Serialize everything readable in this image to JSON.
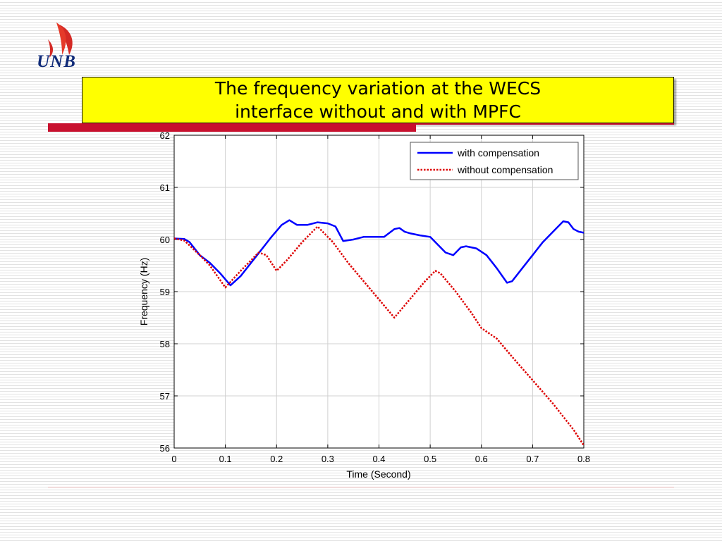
{
  "logo": {
    "text": "UNB"
  },
  "title": {
    "line1": "The frequency variation at the WECS",
    "line2": "interface without and with MPFC"
  },
  "colors": {
    "title_background": "#ffff00",
    "accent_red": "#c8102e",
    "series_with": "#0000ff",
    "series_without": "#dd0000"
  },
  "chart_data": {
    "type": "line",
    "title": "",
    "xlabel": "Time (Second)",
    "ylabel": "Frequency (Hz)",
    "xlim": [
      0,
      0.8
    ],
    "ylim": [
      56,
      62
    ],
    "x_ticks": [
      0,
      0.1,
      0.2,
      0.3,
      0.4,
      0.5,
      0.6,
      0.7,
      0.8
    ],
    "x_tick_labels": [
      "0",
      "0.1",
      "0.2",
      "0.3",
      "0.4",
      "0.5",
      "0.6",
      "0.7",
      "0.8"
    ],
    "y_ticks": [
      56,
      57,
      58,
      59,
      60,
      61,
      62
    ],
    "y_tick_labels": [
      "56",
      "57",
      "58",
      "59",
      "60",
      "61",
      "62"
    ],
    "grid": true,
    "legend_position": "top-right",
    "series": [
      {
        "name": "with compensation",
        "style": "solid",
        "color": "#0000ff",
        "x": [
          0,
          0.02,
          0.03,
          0.05,
          0.07,
          0.09,
          0.11,
          0.13,
          0.15,
          0.17,
          0.19,
          0.21,
          0.225,
          0.24,
          0.26,
          0.28,
          0.3,
          0.315,
          0.33,
          0.35,
          0.37,
          0.39,
          0.41,
          0.43,
          0.44,
          0.45,
          0.46,
          0.48,
          0.5,
          0.53,
          0.545,
          0.56,
          0.57,
          0.59,
          0.61,
          0.63,
          0.65,
          0.66,
          0.68,
          0.7,
          0.72,
          0.74,
          0.76,
          0.77,
          0.78,
          0.79,
          0.8
        ],
        "y": [
          60.02,
          60.01,
          59.95,
          59.7,
          59.55,
          59.35,
          59.12,
          59.3,
          59.55,
          59.8,
          60.05,
          60.28,
          60.37,
          60.28,
          60.28,
          60.33,
          60.31,
          60.25,
          59.97,
          60.0,
          60.05,
          60.05,
          60.05,
          60.2,
          60.22,
          60.15,
          60.12,
          60.08,
          60.05,
          59.75,
          59.7,
          59.85,
          59.87,
          59.83,
          59.7,
          59.45,
          59.17,
          59.2,
          59.45,
          59.7,
          59.95,
          60.15,
          60.35,
          60.33,
          60.2,
          60.15,
          60.13
        ]
      },
      {
        "name": "without compensation",
        "style": "dotted",
        "color": "#dd0000",
        "x": [
          0,
          0.02,
          0.05,
          0.07,
          0.1,
          0.13,
          0.165,
          0.18,
          0.2,
          0.22,
          0.25,
          0.28,
          0.31,
          0.34,
          0.37,
          0.4,
          0.43,
          0.46,
          0.49,
          0.51,
          0.52,
          0.55,
          0.58,
          0.6,
          0.63,
          0.66,
          0.7,
          0.74,
          0.78,
          0.8
        ],
        "y": [
          60.02,
          59.98,
          59.7,
          59.5,
          59.08,
          59.4,
          59.75,
          59.7,
          59.4,
          59.6,
          59.95,
          60.25,
          59.95,
          59.55,
          59.2,
          58.85,
          58.5,
          58.85,
          59.2,
          59.4,
          59.35,
          59.0,
          58.6,
          58.3,
          58.1,
          57.75,
          57.3,
          56.85,
          56.35,
          56.05
        ]
      }
    ]
  }
}
